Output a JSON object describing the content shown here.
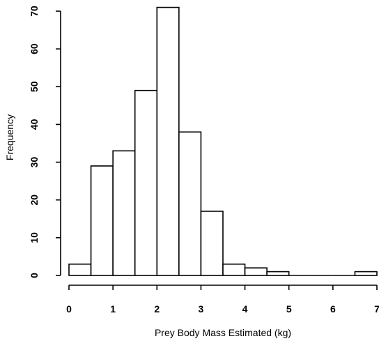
{
  "chart_data": {
    "type": "bar",
    "subtype": "histogram",
    "title": "",
    "xlabel": "Prey Body Mass Estimated (kg)",
    "ylabel": "Frequency",
    "bin_edges": [
      0,
      0.5,
      1,
      1.5,
      2,
      2.5,
      3,
      3.5,
      4,
      4.5,
      5,
      5.5,
      6,
      6.5,
      7
    ],
    "values": [
      3,
      29,
      33,
      49,
      71,
      38,
      17,
      3,
      2,
      1,
      0,
      0,
      0,
      1
    ],
    "xlim": [
      0,
      7
    ],
    "ylim": [
      0,
      70
    ],
    "x_ticks": [
      0,
      1,
      2,
      3,
      4,
      5,
      6,
      7
    ],
    "x_tick_labels": [
      "0",
      "1",
      "2",
      "3",
      "4",
      "5",
      "6",
      "7"
    ],
    "y_ticks": [
      0,
      10,
      20,
      30,
      40,
      50,
      60,
      70
    ],
    "y_tick_labels": [
      "0",
      "10",
      "20",
      "30",
      "40",
      "50",
      "60",
      "70"
    ],
    "grid": false,
    "legend": "none",
    "bar_fill": "#ffffff",
    "bar_stroke": "#000000"
  }
}
